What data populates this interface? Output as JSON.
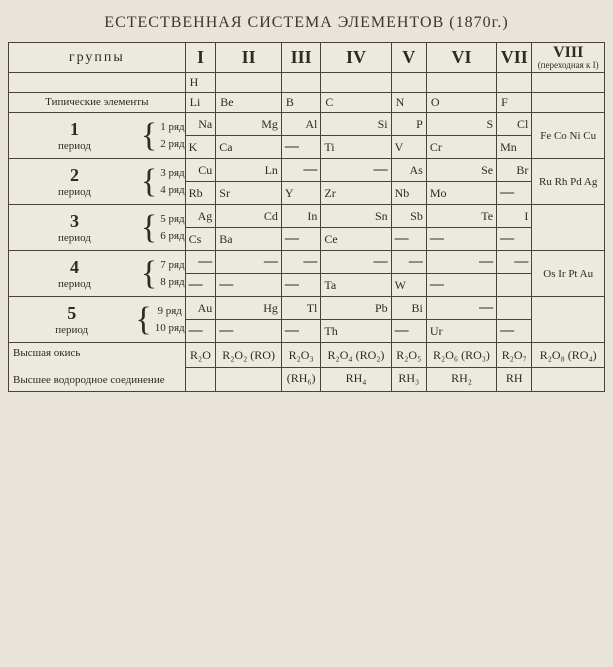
{
  "title": "ЕСТЕСТВЕННАЯ СИСТЕМА ЭЛЕМЕНТОВ (1870г.)",
  "hdr": {
    "groups": "группы",
    "cols": [
      "I",
      "II",
      "III",
      "IV",
      "V",
      "VI",
      "VII"
    ],
    "viii": "VIII",
    "viii_sub": "(переходная к I)"
  },
  "row_h": {
    "c1": "H"
  },
  "row_typ": {
    "label": "Типические элементы",
    "cells": [
      "Li",
      "Be",
      "B",
      "C",
      "N",
      "O",
      "F"
    ]
  },
  "periods": [
    {
      "num": "1",
      "label": "период",
      "r1": "1 ряд",
      "r2": "2 ряд",
      "a": [
        "Na",
        "Mg",
        "Al",
        "Si",
        "P",
        "S",
        "Cl"
      ],
      "b": [
        "K",
        "Ca",
        "—",
        "Ti",
        "V",
        "Cr",
        "Mn"
      ],
      "viii": "Fe Co Ni Cu",
      "align_a": "r",
      "align_b": "l"
    },
    {
      "num": "2",
      "label": "период",
      "r1": "3 ряд",
      "r2": "4 ряд",
      "a": [
        "Cu",
        "Ln",
        "—",
        "—",
        "As",
        "Se",
        "Br"
      ],
      "b": [
        "Rb",
        "Sr",
        "Y",
        "Zr",
        "Nb",
        "Mo",
        "—"
      ],
      "viii": "Ru Rh Pd Ag",
      "align_a": "r",
      "align_b": "l"
    },
    {
      "num": "3",
      "label": "период",
      "r1": "5 ряд",
      "r2": "6 ряд",
      "a": [
        "Ag",
        "Cd",
        "In",
        "Sn",
        "Sb",
        "Te",
        "I"
      ],
      "b": [
        "Cs",
        "Ba",
        "—",
        "Ce",
        "—",
        "—",
        "—"
      ],
      "viii": "",
      "align_a": "r",
      "align_b": "l"
    },
    {
      "num": "4",
      "label": "период",
      "r1": "7 ряд",
      "r2": "8 ряд",
      "a": [
        "—",
        "—",
        "—",
        "—",
        "—",
        "—",
        "—"
      ],
      "b": [
        "—",
        "—",
        "—",
        "Ta",
        "W",
        "—",
        ""
      ],
      "viii": "Os Ir Pt Au",
      "align_a": "r",
      "align_b": "l"
    },
    {
      "num": "5",
      "label": "период",
      "r1": "9 ряд",
      "r2": "10 ряд",
      "a": [
        "Au",
        "Hg",
        "Tl",
        "Pb",
        "Bi",
        "—",
        ""
      ],
      "b": [
        "—",
        "—",
        "—",
        "Th",
        "—",
        "Ur",
        "—"
      ],
      "viii": "",
      "align_a": "r",
      "align_b": "l"
    }
  ],
  "oxide": {
    "label1": "Высшая окись",
    "label2": "Высшее водородное соединение",
    "r1": [
      "R₂O",
      "R₂O₂ (RO)",
      "R₂O₃",
      "R₂O₄ (RO₂)",
      "R₂O₅",
      "R₂O₆ (RO₃)",
      "R₂O₇",
      "R₂O₈ (RO₄)"
    ],
    "r2": [
      "",
      "",
      "(RH₆)",
      "RH₄",
      "RH₃",
      "RH₂",
      "RH",
      ""
    ]
  },
  "style": {
    "bg": "#e8e4da",
    "table_bg": "#eceade",
    "border": "#4a4438",
    "text": "#2e2a24"
  }
}
